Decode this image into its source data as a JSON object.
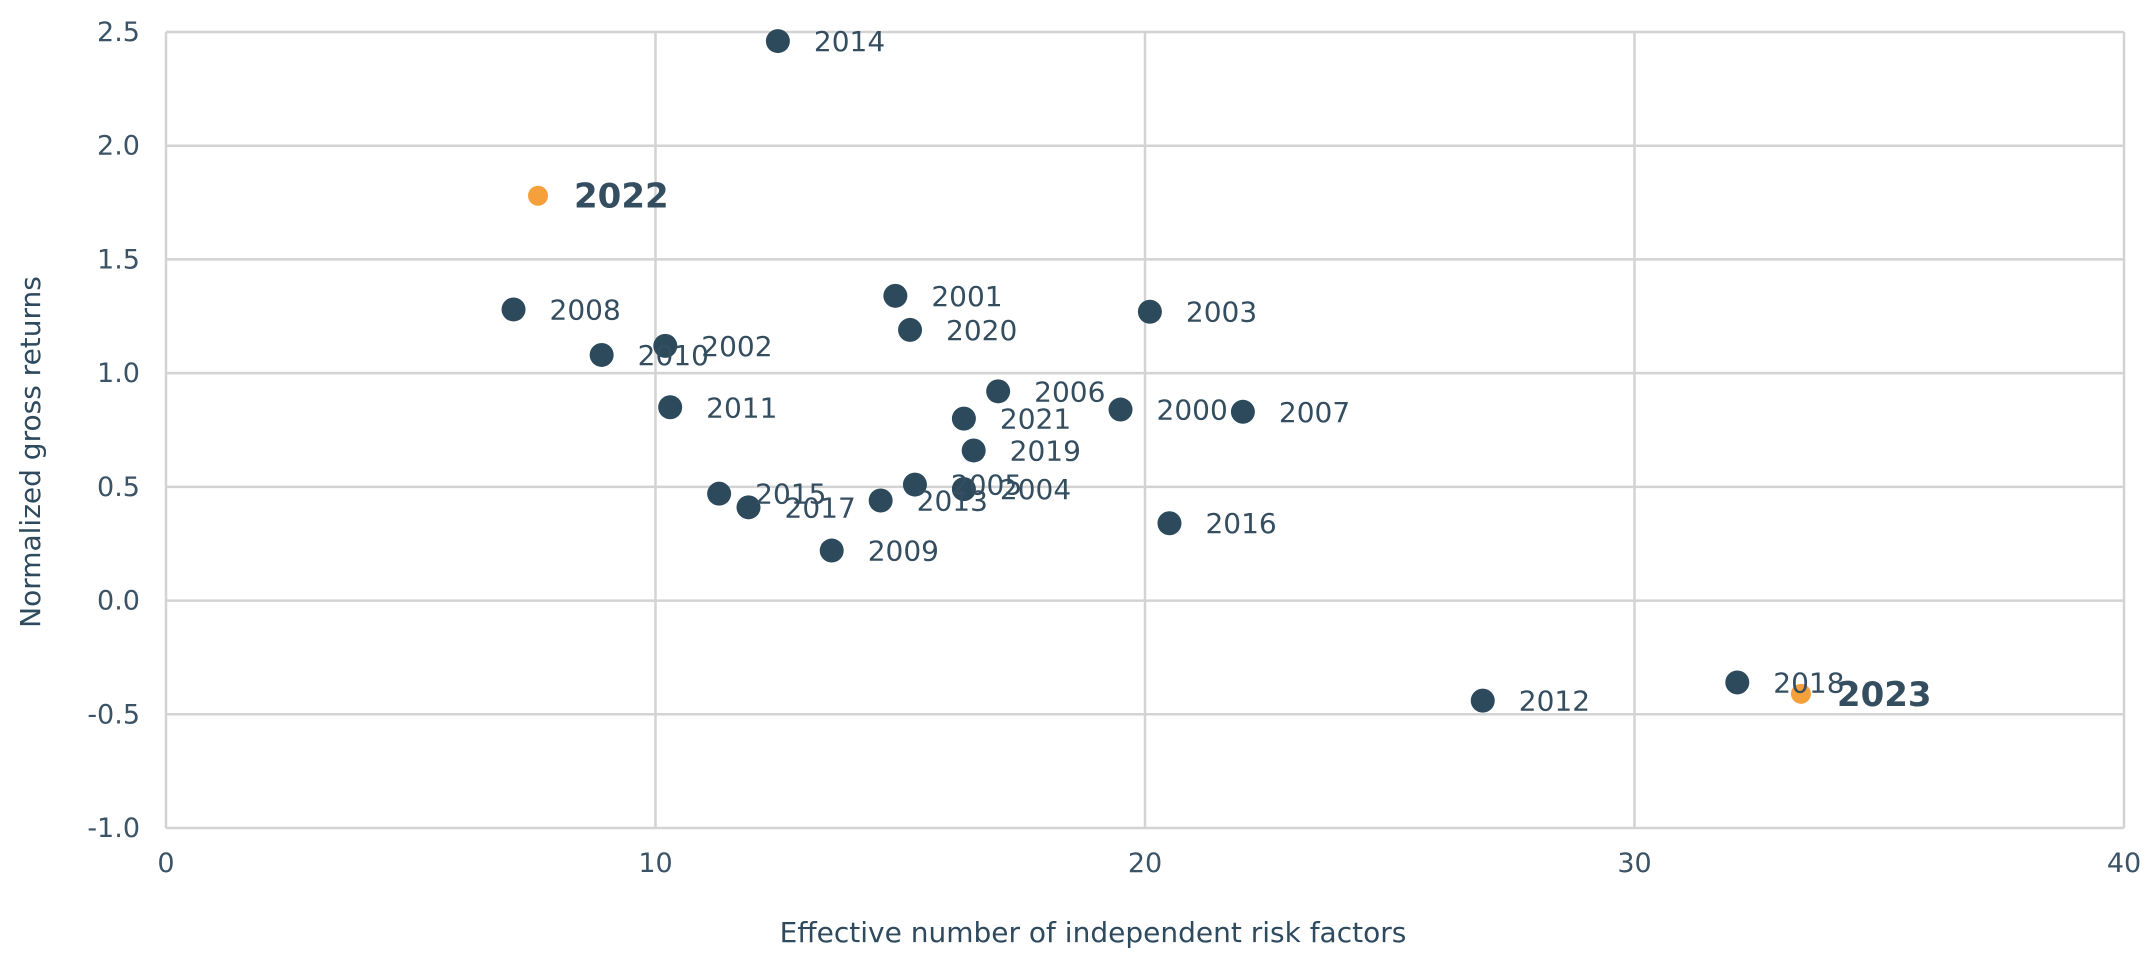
{
  "colors": {
    "default_point": "#2c4a5c",
    "highlight_point": "#f5a03a",
    "grid": "#d3d3d3",
    "text": "#344e60"
  },
  "chart_data": {
    "type": "scatter",
    "title": "",
    "xlabel": "Effective number of independent risk factors",
    "ylabel": "Normalized gross returns",
    "xlim": [
      0,
      40
    ],
    "ylim": [
      -1.0,
      2.5
    ],
    "xticks": [
      0,
      10,
      20,
      30,
      40
    ],
    "yticks": [
      -1.0,
      -0.5,
      0.0,
      0.5,
      1.0,
      1.5,
      2.0,
      2.5
    ],
    "xtick_labels": [
      "0",
      "10",
      "20",
      "30",
      "40"
    ],
    "ytick_labels": [
      "-1.0",
      "-0.5",
      "0.0",
      "0.5",
      "1.0",
      "1.5",
      "2.0",
      "2.5"
    ],
    "grid": true,
    "points": [
      {
        "label": "2000",
        "x": 19.5,
        "y": 0.84,
        "highlight": false
      },
      {
        "label": "2001",
        "x": 14.9,
        "y": 1.34,
        "highlight": false
      },
      {
        "label": "2002",
        "x": 10.2,
        "y": 1.12,
        "highlight": false
      },
      {
        "label": "2003",
        "x": 20.1,
        "y": 1.27,
        "highlight": false
      },
      {
        "label": "2004",
        "x": 16.3,
        "y": 0.49,
        "highlight": false
      },
      {
        "label": "2005",
        "x": 15.3,
        "y": 0.51,
        "highlight": false
      },
      {
        "label": "2006",
        "x": 17.0,
        "y": 0.92,
        "highlight": false
      },
      {
        "label": "2007",
        "x": 22.0,
        "y": 0.83,
        "highlight": false
      },
      {
        "label": "2008",
        "x": 7.1,
        "y": 1.28,
        "highlight": false
      },
      {
        "label": "2009",
        "x": 13.6,
        "y": 0.22,
        "highlight": false
      },
      {
        "label": "2010",
        "x": 8.9,
        "y": 1.08,
        "highlight": false
      },
      {
        "label": "2011",
        "x": 10.3,
        "y": 0.85,
        "highlight": false
      },
      {
        "label": "2012",
        "x": 26.9,
        "y": -0.44,
        "highlight": false
      },
      {
        "label": "2013",
        "x": 14.6,
        "y": 0.44,
        "highlight": false
      },
      {
        "label": "2014",
        "x": 12.5,
        "y": 2.46,
        "highlight": false
      },
      {
        "label": "2015",
        "x": 11.3,
        "y": 0.47,
        "highlight": false
      },
      {
        "label": "2016",
        "x": 20.5,
        "y": 0.34,
        "highlight": false
      },
      {
        "label": "2017",
        "x": 11.9,
        "y": 0.41,
        "highlight": false
      },
      {
        "label": "2018",
        "x": 32.1,
        "y": -0.36,
        "highlight": false
      },
      {
        "label": "2019",
        "x": 16.5,
        "y": 0.66,
        "highlight": false
      },
      {
        "label": "2020",
        "x": 15.2,
        "y": 1.19,
        "highlight": false
      },
      {
        "label": "2021",
        "x": 16.3,
        "y": 0.8,
        "highlight": false
      },
      {
        "label": "2022",
        "x": 7.6,
        "y": 1.78,
        "highlight": true
      },
      {
        "label": "2023",
        "x": 33.4,
        "y": -0.41,
        "highlight": true
      }
    ]
  }
}
